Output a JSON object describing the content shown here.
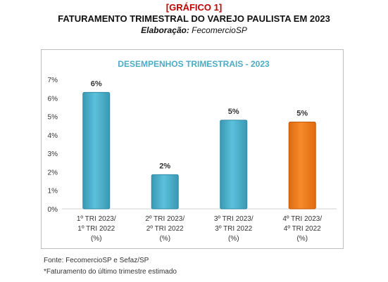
{
  "header": {
    "tag": "[GRÁFICO 1]",
    "title": "FATURAMENTO TRIMESTRAL DO VAREJO PAULISTA EM 2023",
    "credit_label": "Elaboração:",
    "credit_value": "FecomercioSP"
  },
  "chart_data": {
    "type": "bar",
    "title": "DESEMPENHOS TRIMESTRAIS - 2023",
    "xlabel": "",
    "ylabel": "",
    "ylim": [
      0,
      7
    ],
    "yticks": [
      "0%",
      "1%",
      "2%",
      "3%",
      "4%",
      "5%",
      "6%",
      "7%"
    ],
    "categories": [
      [
        "1º TRI 2023/",
        "1º TRI 2022",
        "(%)"
      ],
      [
        "2º TRI 2023/",
        "2º TRI 2022",
        "(%)"
      ],
      [
        "3º TRI 2023/",
        "3º TRI 2022",
        "(%)"
      ],
      [
        "4º TRI 2023/",
        "4º TRI 2022",
        "(%)"
      ]
    ],
    "values": [
      6.3,
      1.85,
      4.8,
      4.7
    ],
    "data_labels": [
      "6%",
      "2%",
      "5%",
      "5%"
    ],
    "colors": [
      "#4bacc6",
      "#4bacc6",
      "#4bacc6",
      "#f07e1a"
    ],
    "title_color": "#4bacc6",
    "grid": false,
    "legend": "none"
  },
  "notes": [
    "Fonte: FecomercioSP e Sefaz/SP",
    "*Faturamento do último trimestre estimado"
  ]
}
